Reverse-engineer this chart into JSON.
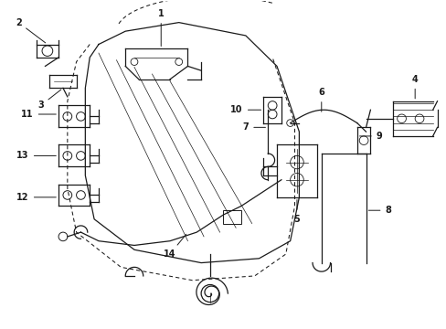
{
  "bg_color": "#ffffff",
  "line_color": "#1a1a1a",
  "figsize": [
    4.89,
    3.6
  ],
  "dpi": 100,
  "xlim": [
    0,
    100
  ],
  "ylim": [
    0,
    75
  ]
}
